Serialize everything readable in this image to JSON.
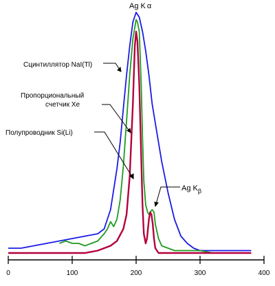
{
  "chart_data": {
    "type": "line",
    "xlabel": "",
    "ylabel": "",
    "xlim": [
      0,
      400
    ],
    "ylim": [
      0,
      1.0
    ],
    "xticks": [
      0,
      100,
      200,
      300,
      400
    ],
    "xtick_labels": [
      "0",
      "100",
      "200",
      "300",
      "400"
    ],
    "grid": false,
    "legend": "none",
    "series": [
      {
        "name": "Сцинтиллятор NaI(Tl)",
        "color": "#1a1ae6",
        "x": [
          0,
          20,
          40,
          60,
          80,
          100,
          120,
          140,
          150,
          160,
          170,
          175,
          180,
          185,
          190,
          195,
          200,
          205,
          210,
          215,
          220,
          225,
          230,
          240,
          250,
          260,
          270,
          280,
          290,
          300,
          320,
          340,
          360,
          380
        ],
        "y": [
          0.02,
          0.02,
          0.03,
          0.04,
          0.05,
          0.06,
          0.07,
          0.08,
          0.1,
          0.18,
          0.35,
          0.46,
          0.6,
          0.74,
          0.86,
          0.96,
          1.0,
          0.98,
          0.92,
          0.84,
          0.74,
          0.62,
          0.54,
          0.38,
          0.25,
          0.14,
          0.07,
          0.04,
          0.02,
          0.01,
          0.01,
          0.01,
          0.01,
          0.01
        ]
      },
      {
        "name": "Пропорциональный счетчик Xe",
        "color": "#1f9a1f",
        "x": [
          80,
          90,
          100,
          110,
          120,
          130,
          140,
          150,
          155,
          160,
          165,
          170,
          175,
          180,
          185,
          190,
          195,
          200,
          202,
          205,
          208,
          210,
          212,
          215,
          218,
          220,
          222,
          225,
          228,
          230,
          235,
          240,
          250,
          260,
          270,
          280,
          290,
          300,
          320,
          340,
          360,
          380
        ],
        "y": [
          0.04,
          0.05,
          0.04,
          0.04,
          0.03,
          0.04,
          0.05,
          0.08,
          0.1,
          0.13,
          0.11,
          0.14,
          0.22,
          0.36,
          0.55,
          0.74,
          0.89,
          0.97,
          0.96,
          0.92,
          0.7,
          0.48,
          0.3,
          0.2,
          0.17,
          0.16,
          0.17,
          0.18,
          0.17,
          0.12,
          0.06,
          0.03,
          0.02,
          0.01,
          0.01,
          0.01,
          0.01,
          0.01,
          0.0,
          0.0,
          0.0,
          0.0
        ]
      },
      {
        "name": "Полупроводник Si(Li)",
        "color": "#b3003c",
        "x": [
          0,
          20,
          40,
          60,
          80,
          100,
          120,
          140,
          150,
          160,
          170,
          180,
          185,
          190,
          195,
          198,
          200,
          202,
          205,
          208,
          210,
          212,
          215,
          217,
          220,
          222,
          224,
          226,
          228,
          230,
          235,
          240,
          260,
          280,
          300,
          340,
          380
        ],
        "y": [
          0.0,
          0.0,
          0.0,
          0.0,
          0.0,
          0.0,
          0.0,
          0.01,
          0.02,
          0.03,
          0.05,
          0.1,
          0.16,
          0.32,
          0.62,
          0.86,
          0.92,
          0.88,
          0.7,
          0.4,
          0.2,
          0.08,
          0.04,
          0.06,
          0.14,
          0.17,
          0.16,
          0.12,
          0.06,
          0.02,
          0.0,
          0.0,
          0.0,
          0.0,
          0.0,
          0.0,
          0.0
        ]
      }
    ],
    "annotations": [
      {
        "text": "Ag K",
        "greek": "α",
        "sub": ""
      },
      {
        "text": "Ag K",
        "greek": "",
        "sub": "β"
      },
      {
        "text": "Сцинтиллятор NaI(Tl)"
      },
      {
        "text": "Пропорциональный"
      },
      {
        "text": "счетчик Xe"
      },
      {
        "text": "Полупроводник Si(Li)"
      }
    ]
  }
}
